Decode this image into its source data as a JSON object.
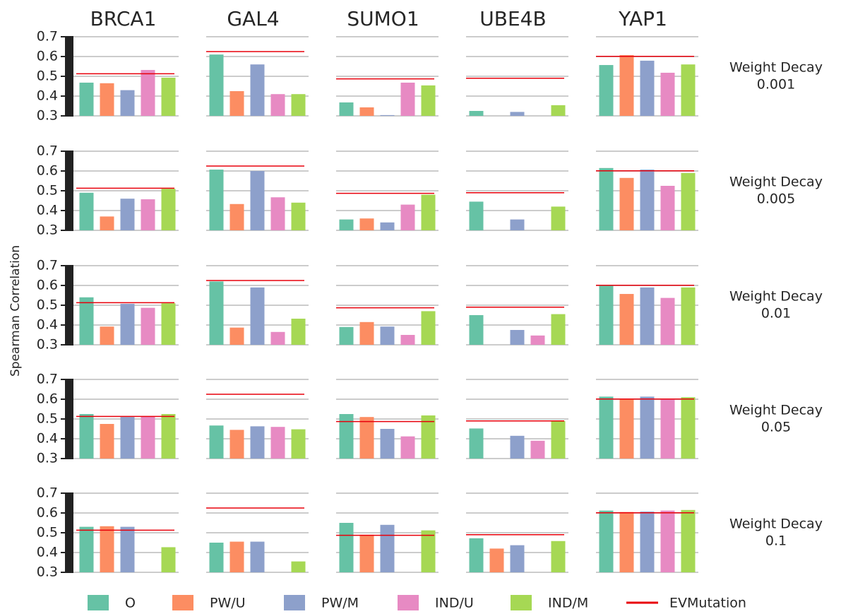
{
  "chart_data": {
    "type": "bar",
    "y_label": "Spearman Correlation",
    "ylim": [
      0.3,
      0.7
    ],
    "yticks": [
      0.3,
      0.4,
      0.5,
      0.6,
      0.7
    ],
    "grid": true,
    "columns": [
      "BRCA1",
      "GAL4",
      "SUMO1",
      "UBE4B",
      "YAP1"
    ],
    "rows": [
      [
        "Weight Decay",
        "0.001"
      ],
      [
        "Weight Decay",
        "0.005"
      ],
      [
        "Weight Decay",
        "0.01"
      ],
      [
        "Weight Decay",
        "0.05"
      ],
      [
        "Weight Decay",
        "0.1"
      ]
    ],
    "series": [
      {
        "name": "O",
        "color": "#66c2a5",
        "values": [
          [
            0.468,
            0.61,
            0.368,
            0.325,
            0.557
          ],
          [
            0.49,
            0.607,
            0.355,
            0.445,
            0.615
          ],
          [
            0.54,
            0.62,
            0.39,
            0.45,
            0.6
          ],
          [
            0.525,
            0.467,
            0.525,
            0.452,
            0.613
          ],
          [
            0.53,
            0.45,
            0.55,
            0.472,
            0.612
          ]
        ]
      },
      {
        "name": "PW/U",
        "color": "#fc8d62",
        "values": [
          [
            0.465,
            0.425,
            0.343,
            null,
            0.607
          ],
          [
            0.37,
            0.433,
            0.36,
            null,
            0.565
          ],
          [
            0.392,
            0.387,
            0.415,
            null,
            0.557
          ],
          [
            0.475,
            0.445,
            0.51,
            null,
            0.6
          ],
          [
            0.533,
            0.455,
            0.49,
            0.42,
            0.605
          ]
        ]
      },
      {
        "name": "PW/M",
        "color": "#8da0cb",
        "values": [
          [
            0.43,
            0.56,
            0.304,
            0.32,
            0.579
          ],
          [
            0.46,
            0.6,
            0.34,
            0.355,
            0.607
          ],
          [
            0.507,
            0.59,
            0.392,
            0.375,
            0.59
          ],
          [
            0.51,
            0.463,
            0.45,
            0.415,
            0.613
          ],
          [
            0.53,
            0.455,
            0.54,
            0.437,
            0.607
          ]
        ]
      },
      {
        "name": "IND/U",
        "color": "#e78ac3",
        "values": [
          [
            0.532,
            0.41,
            0.468,
            null,
            0.518
          ],
          [
            0.457,
            0.467,
            0.43,
            null,
            0.525
          ],
          [
            0.487,
            0.365,
            0.35,
            0.347,
            0.537
          ],
          [
            0.513,
            0.46,
            0.412,
            0.39,
            0.6
          ],
          [
            null,
            null,
            null,
            null,
            0.612
          ]
        ]
      },
      {
        "name": "IND/M",
        "color": "#a6d854",
        "values": [
          [
            0.493,
            0.41,
            0.454,
            0.354,
            0.56
          ],
          [
            0.51,
            0.44,
            0.48,
            0.42,
            0.59
          ],
          [
            0.51,
            0.432,
            0.47,
            0.455,
            0.59
          ],
          [
            0.525,
            0.448,
            0.518,
            0.49,
            0.61
          ],
          [
            0.427,
            0.355,
            0.512,
            0.458,
            0.615
          ]
        ]
      }
    ],
    "reference_line": {
      "name": "EVMutation",
      "color": "#e8000b",
      "values": [
        0.513,
        0.625,
        0.487,
        0.49,
        0.601
      ]
    }
  }
}
